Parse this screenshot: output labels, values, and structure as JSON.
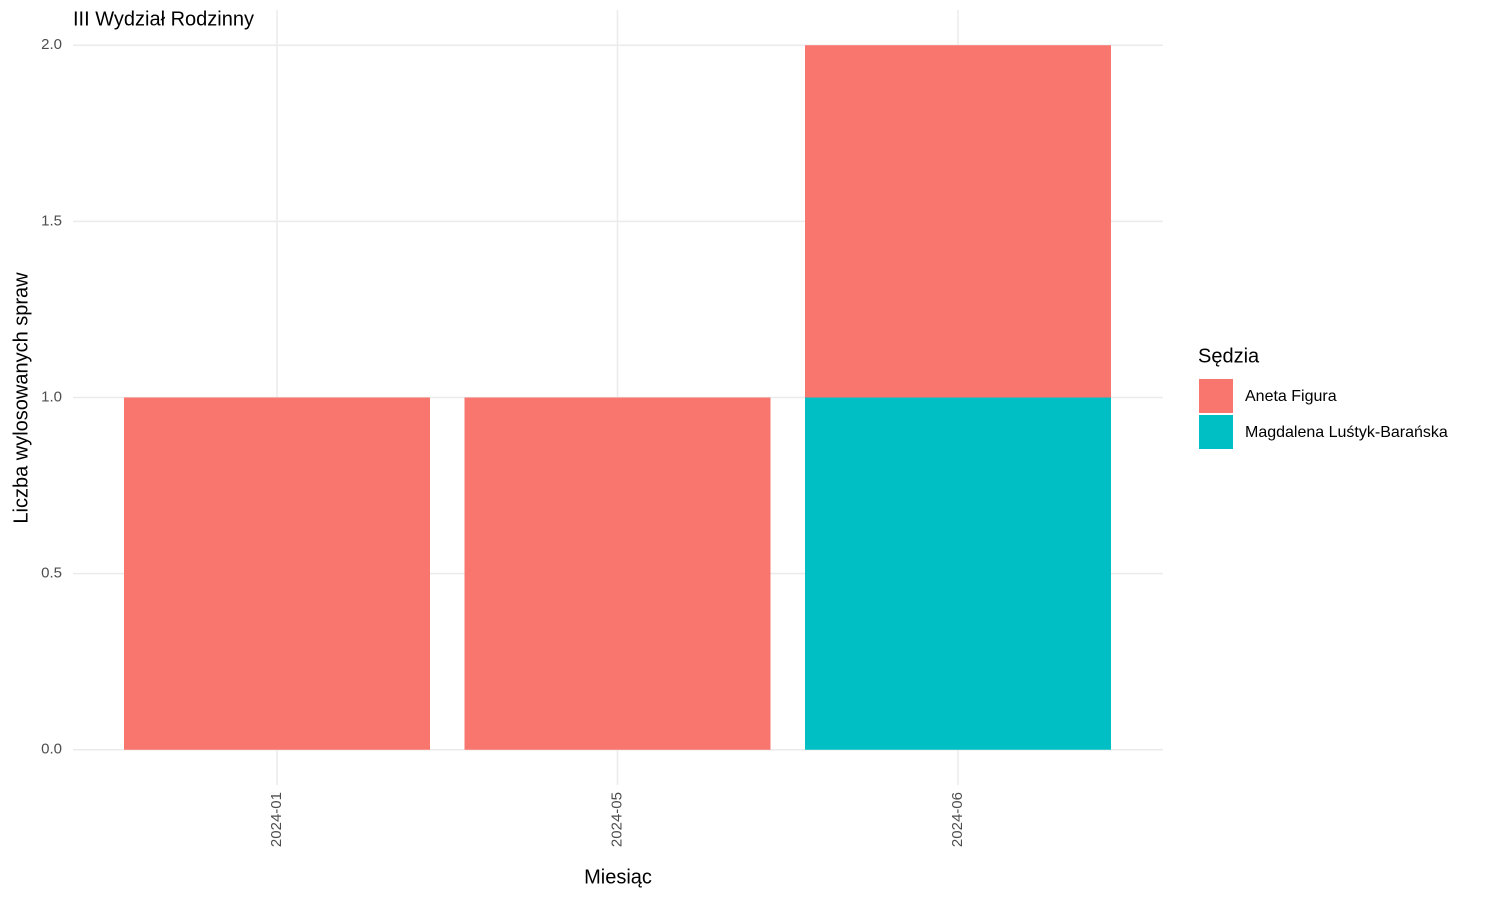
{
  "chart_data": {
    "type": "stacked_bar",
    "title": "III Wydział Rodzinny",
    "x_label": "Miesiąc",
    "y_label": "Liczba wylosowanych spraw",
    "legend_title": "Sędzia",
    "legend_position": "right",
    "categories": [
      "2024-01",
      "2024-05",
      "2024-06"
    ],
    "series": [
      {
        "name": "Aneta Figura",
        "color": "#F8766D",
        "values": [
          1,
          1,
          1
        ]
      },
      {
        "name": "Magdalena Luśtyk-Barańska",
        "color": "#00BFC4",
        "values": [
          null,
          null,
          1
        ]
      }
    ],
    "ylim": [
      -0.1,
      2.1
    ],
    "yticks": [
      {
        "value": 0,
        "label": "0.0"
      },
      0.5,
      {
        "value": 1,
        "label": "1.0"
      },
      1.5,
      {
        "value": 2,
        "label": "2.0"
      }
    ],
    "grid": true
  }
}
